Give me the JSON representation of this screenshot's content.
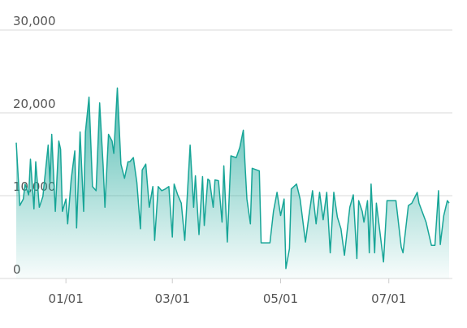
{
  "chart_data": {
    "type": "area",
    "x": [
      "12/04",
      "12/06",
      "12/08",
      "12/09",
      "12/11",
      "12/12",
      "12/14",
      "12/15",
      "12/17",
      "12/19",
      "12/22",
      "12/23",
      "12/24",
      "12/26",
      "12/28",
      "12/29",
      "12/30",
      "01/01",
      "01/02",
      "01/04",
      "01/06",
      "01/07",
      "01/09",
      "01/11",
      "01/12",
      "01/14",
      "01/16",
      "01/18",
      "01/20",
      "01/22",
      "01/23",
      "01/25",
      "01/27",
      "01/28",
      "01/30",
      "02/01",
      "02/03",
      "02/05",
      "02/06",
      "02/08",
      "02/10",
      "02/12",
      "02/13",
      "02/15",
      "02/17",
      "02/19",
      "02/20",
      "02/22",
      "02/24",
      "02/26",
      "02/28",
      "03/01",
      "03/02",
      "03/04",
      "03/06",
      "03/08",
      "03/11",
      "03/13",
      "03/14",
      "03/16",
      "03/18",
      "03/19",
      "03/21",
      "03/22",
      "03/24",
      "03/25",
      "03/27",
      "03/29",
      "03/30",
      "04/01",
      "04/03",
      "04/06",
      "04/08",
      "04/10",
      "04/11",
      "04/12",
      "04/14",
      "04/15",
      "04/19",
      "04/20",
      "04/25",
      "04/27",
      "04/29",
      "05/01",
      "05/03",
      "05/04",
      "05/06",
      "05/07",
      "05/10",
      "05/12",
      "05/15",
      "05/17",
      "05/19",
      "05/21",
      "05/23",
      "05/25",
      "05/27",
      "05/29",
      "05/31",
      "06/02",
      "06/04",
      "06/06",
      "06/09",
      "06/11",
      "06/13",
      "06/14",
      "06/16",
      "06/17",
      "06/19",
      "06/20",
      "06/21",
      "06/23",
      "06/24",
      "06/26",
      "06/28",
      "06/30",
      "07/05",
      "07/08",
      "07/09",
      "07/12",
      "07/14",
      "07/17",
      "07/18",
      "07/22",
      "07/25",
      "07/27",
      "07/29",
      "07/30",
      "08/01",
      "08/03",
      "08/04"
    ],
    "values": [
      16400,
      8800,
      9600,
      11400,
      10100,
      14400,
      8400,
      14100,
      8600,
      9900,
      16100,
      11600,
      17400,
      8100,
      16600,
      15600,
      8100,
      9600,
      6600,
      12000,
      15400,
      6100,
      17700,
      8100,
      17700,
      21900,
      11100,
      10600,
      21200,
      13600,
      8600,
      17400,
      16600,
      15100,
      23000,
      13800,
      12100,
      14100,
      14100,
      14600,
      11600,
      6000,
      13100,
      13800,
      8600,
      11100,
      4600,
      11100,
      10600,
      10800,
      11100,
      5000,
      11400,
      10100,
      9100,
      4600,
      16100,
      8600,
      12400,
      5300,
      12300,
      6400,
      12000,
      11800,
      8600,
      11900,
      11800,
      6800,
      13600,
      4400,
      14800,
      14600,
      15800,
      17900,
      13600,
      9600,
      6600,
      13300,
      13000,
      4300,
      4300,
      8100,
      10400,
      7600,
      9600,
      1200,
      3600,
      10800,
      11400,
      9600,
      4400,
      7600,
      10600,
      6600,
      10400,
      7100,
      10400,
      3100,
      10400,
      7400,
      6000,
      2800,
      8600,
      10100,
      2400,
      9400,
      8100,
      6800,
      9400,
      3100,
      11400,
      3100,
      9100,
      5600,
      2000,
      9400,
      9400,
      3800,
      3100,
      8800,
      9100,
      10400,
      9100,
      6800,
      4000,
      4000,
      10600,
      4100,
      7600,
      9400,
      9100
    ],
    "color": "#17a597",
    "ylim": [
      0,
      30000
    ],
    "yticks": [
      0,
      {
        "value": 10000,
        "label": "10,000"
      },
      {
        "value": 20000,
        "label": "20,000"
      },
      {
        "value": 30000,
        "label": "30,000"
      }
    ],
    "xticks": [
      "01/01",
      "03/01",
      "05/01",
      "07/01"
    ],
    "grid": true
  }
}
